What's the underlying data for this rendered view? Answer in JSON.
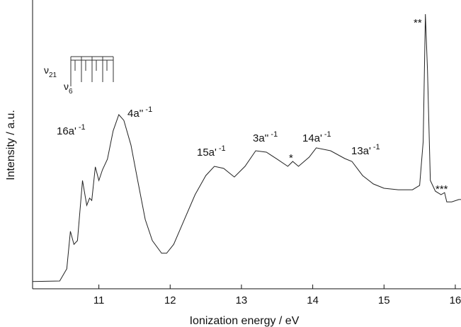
{
  "chart_data": {
    "type": "line",
    "x_label": "Ionization energy / eV",
    "y_label": "Intensity / a.u.",
    "xlim": [
      10.07,
      16.08
    ],
    "ylim": [
      0,
      100
    ],
    "xticks": [
      11,
      12,
      13,
      14,
      15,
      16
    ],
    "color": "#222222",
    "x": [
      10.07,
      10.45,
      10.55,
      10.6,
      10.65,
      10.7,
      10.77,
      10.83,
      10.87,
      10.9,
      10.95,
      11.0,
      11.05,
      11.12,
      11.2,
      11.28,
      11.35,
      11.45,
      11.55,
      11.65,
      11.75,
      11.88,
      11.95,
      12.05,
      12.2,
      12.35,
      12.5,
      12.62,
      12.75,
      12.9,
      13.05,
      13.2,
      13.35,
      13.5,
      13.65,
      13.72,
      13.8,
      13.95,
      14.05,
      14.25,
      14.45,
      14.55,
      14.7,
      14.85,
      15.0,
      15.2,
      15.4,
      15.5,
      15.55,
      15.58,
      15.61,
      15.65,
      15.72,
      15.8,
      15.85,
      15.88,
      15.95,
      16.05,
      16.08
    ],
    "values": [
      2.5,
      2.7,
      6.9,
      19.9,
      15.4,
      16.7,
      37.5,
      28.9,
      31.4,
      30.6,
      42.2,
      37.5,
      41.2,
      44.9,
      54.7,
      60.3,
      58.3,
      49.8,
      36.8,
      24.0,
      16.7,
      12.3,
      12.3,
      15.4,
      24.0,
      32.6,
      39.2,
      42.4,
      41.7,
      38.7,
      42.4,
      47.8,
      47.3,
      44.9,
      42.4,
      44.1,
      42.4,
      45.6,
      48.8,
      47.8,
      45.1,
      44.1,
      39.2,
      36.3,
      34.8,
      34.3,
      34.3,
      35.8,
      51.0,
      95.1,
      75.5,
      37.5,
      33.8,
      32.6,
      33.3,
      30.1,
      30.1,
      30.9,
      30.9
    ],
    "annotations": [
      {
        "text": "16a'",
        "sup": "-1"
      },
      {
        "text": "4a''",
        "sup": "-1"
      },
      {
        "text": "15a'",
        "sup": "-1"
      },
      {
        "text": "3a''",
        "sup": "-1"
      },
      {
        "text": "*"
      },
      {
        "text": "14a'",
        "sup": "-1"
      },
      {
        "text": "13a'",
        "sup": "-1"
      },
      {
        "text": "**"
      },
      {
        "text": "***"
      }
    ],
    "inset_labels": [
      {
        "text": "ν",
        "sub": "21"
      },
      {
        "text": "ν",
        "sub": "6"
      }
    ]
  }
}
